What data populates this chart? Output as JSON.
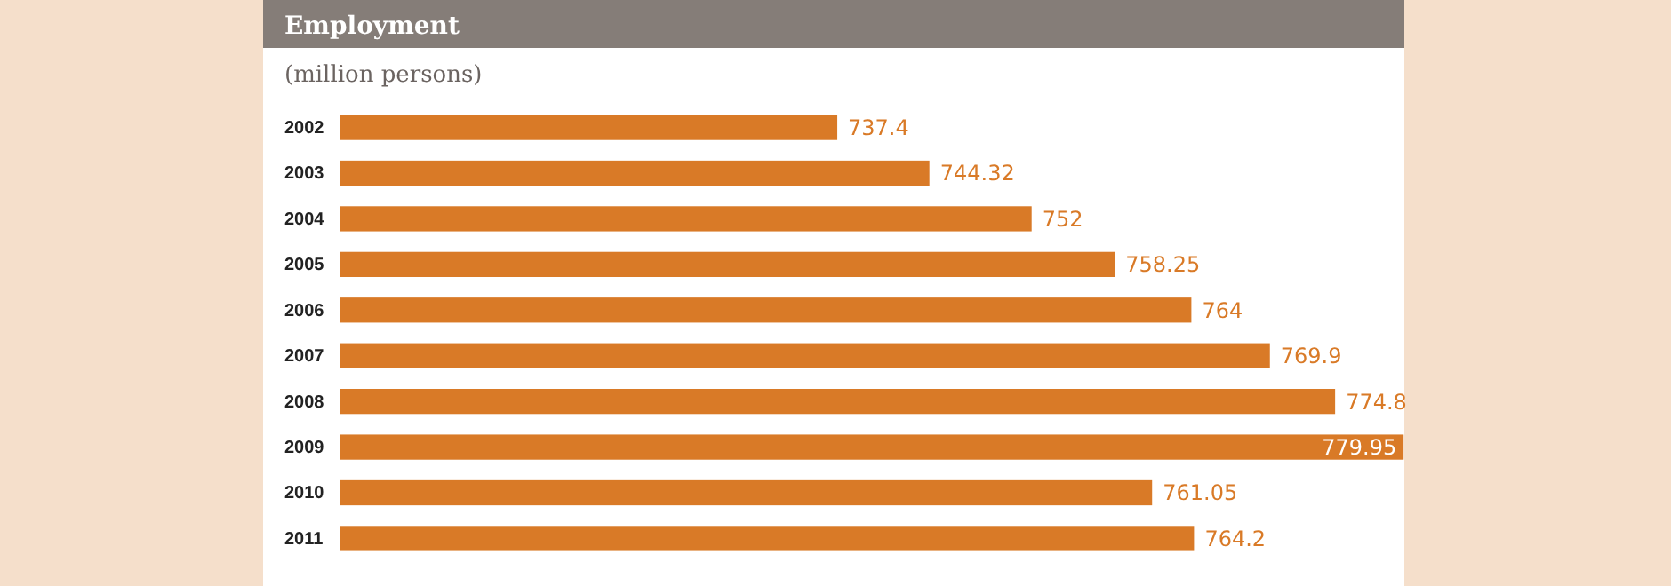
{
  "chart_data": {
    "type": "bar",
    "orientation": "horizontal",
    "title": "Employment",
    "subtitle": "(million persons)",
    "categories": [
      "2002",
      "2003",
      "2004",
      "2005",
      "2006",
      "2007",
      "2008",
      "2009",
      "2010",
      "2011"
    ],
    "values": [
      737.4,
      744.32,
      752,
      758.25,
      764,
      769.9,
      774.8,
      779.95,
      761.05,
      764.2
    ],
    "color": "#d97a27",
    "xlim": [
      700,
      780
    ],
    "tick_labels": "y",
    "data_labels": true
  }
}
